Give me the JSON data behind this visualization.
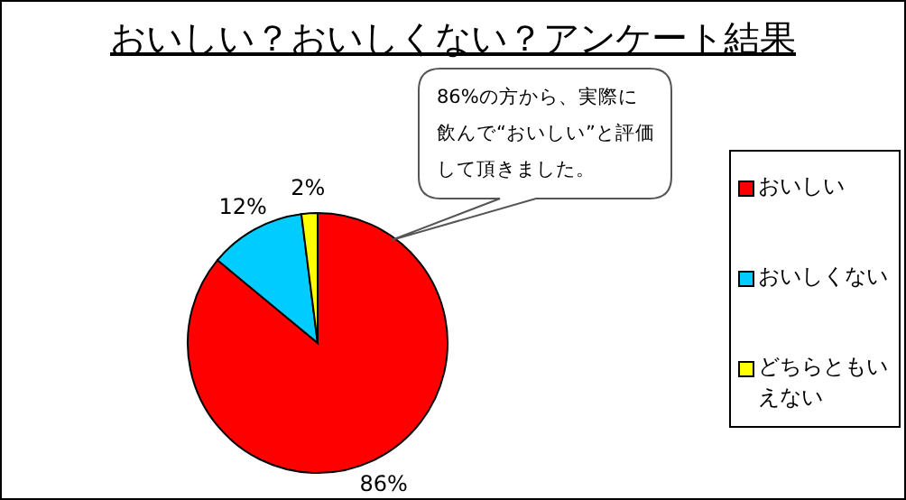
{
  "chart_data": {
    "type": "pie",
    "title": "おいしい？おいしくない？アンケート結果",
    "categories": [
      "おいしい",
      "おいしくない",
      "どちらともいえない"
    ],
    "values": [
      86,
      12,
      2
    ],
    "colors": [
      "#ff0000",
      "#00ccff",
      "#ffff00"
    ],
    "value_labels": [
      "86%",
      "12%",
      "2%"
    ],
    "annotations": [
      "86%の方から、実際に飲んで“おいしい”と評価して頂きました。"
    ],
    "legend": "right"
  }
}
